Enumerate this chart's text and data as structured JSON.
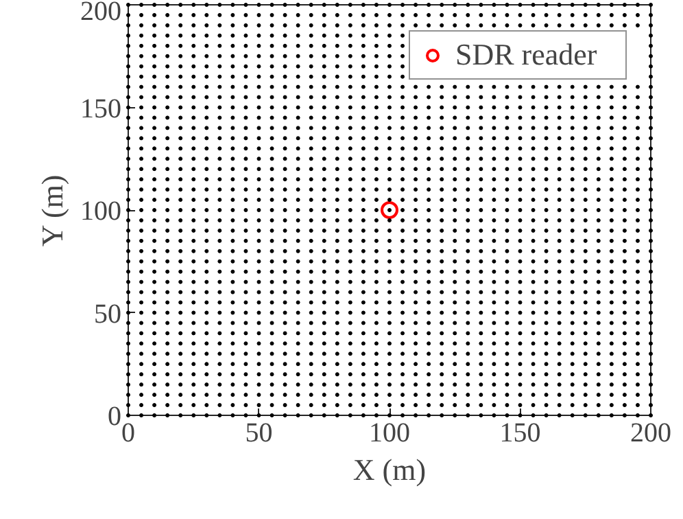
{
  "chart_data": {
    "type": "scatter",
    "xlabel": "X (m)",
    "ylabel": "Y (m)",
    "xlim": [
      0,
      200
    ],
    "ylim": [
      0,
      200
    ],
    "xticks": [
      0,
      50,
      100,
      150,
      200
    ],
    "yticks": [
      0,
      50,
      100,
      150,
      200
    ],
    "grid": false,
    "legend": "top right",
    "marker": "circle",
    "x": [
      0,
      5,
      10,
      15,
      20,
      25,
      30,
      35,
      40,
      45,
      50,
      55,
      60,
      65,
      70,
      75,
      80,
      85,
      90,
      95,
      100,
      105,
      110,
      115,
      120,
      125,
      130,
      135,
      140,
      145,
      150,
      155,
      160,
      165,
      170,
      175,
      180,
      185,
      190,
      195,
      200
    ],
    "series": [
      {
        "color": "#000000",
        "values": [
          0,
          0,
          0,
          0,
          0,
          0,
          0,
          0,
          0,
          0,
          0,
          0,
          0,
          0,
          0,
          0,
          0,
          0,
          0,
          0,
          0,
          0,
          0,
          0,
          0,
          0,
          0,
          0,
          0,
          0,
          0,
          0,
          0,
          0,
          0,
          0,
          0,
          0,
          0,
          0,
          0
        ]
      },
      {
        "color": "#000000",
        "values": [
          5,
          5,
          5,
          5,
          5,
          5,
          5,
          5,
          5,
          5,
          5,
          5,
          5,
          5,
          5,
          5,
          5,
          5,
          5,
          5,
          5,
          5,
          5,
          5,
          5,
          5,
          5,
          5,
          5,
          5,
          5,
          5,
          5,
          5,
          5,
          5,
          5,
          5,
          5,
          5,
          5
        ]
      },
      {
        "color": "#000000",
        "values": [
          10,
          10,
          10,
          10,
          10,
          10,
          10,
          10,
          10,
          10,
          10,
          10,
          10,
          10,
          10,
          10,
          10,
          10,
          10,
          10,
          10,
          10,
          10,
          10,
          10,
          10,
          10,
          10,
          10,
          10,
          10,
          10,
          10,
          10,
          10,
          10,
          10,
          10,
          10,
          10,
          10
        ]
      },
      {
        "color": "#000000",
        "values": [
          15,
          15,
          15,
          15,
          15,
          15,
          15,
          15,
          15,
          15,
          15,
          15,
          15,
          15,
          15,
          15,
          15,
          15,
          15,
          15,
          15,
          15,
          15,
          15,
          15,
          15,
          15,
          15,
          15,
          15,
          15,
          15,
          15,
          15,
          15,
          15,
          15,
          15,
          15,
          15,
          15
        ]
      },
      {
        "color": "#000000",
        "values": [
          20,
          20,
          20,
          20,
          20,
          20,
          20,
          20,
          20,
          20,
          20,
          20,
          20,
          20,
          20,
          20,
          20,
          20,
          20,
          20,
          20,
          20,
          20,
          20,
          20,
          20,
          20,
          20,
          20,
          20,
          20,
          20,
          20,
          20,
          20,
          20,
          20,
          20,
          20,
          20,
          20
        ]
      },
      {
        "color": "#000000",
        "values": [
          25,
          25,
          25,
          25,
          25,
          25,
          25,
          25,
          25,
          25,
          25,
          25,
          25,
          25,
          25,
          25,
          25,
          25,
          25,
          25,
          25,
          25,
          25,
          25,
          25,
          25,
          25,
          25,
          25,
          25,
          25,
          25,
          25,
          25,
          25,
          25,
          25,
          25,
          25,
          25,
          25
        ]
      },
      {
        "color": "#000000",
        "values": [
          30,
          30,
          30,
          30,
          30,
          30,
          30,
          30,
          30,
          30,
          30,
          30,
          30,
          30,
          30,
          30,
          30,
          30,
          30,
          30,
          30,
          30,
          30,
          30,
          30,
          30,
          30,
          30,
          30,
          30,
          30,
          30,
          30,
          30,
          30,
          30,
          30,
          30,
          30,
          30,
          30
        ]
      },
      {
        "color": "#000000",
        "values": [
          35,
          35,
          35,
          35,
          35,
          35,
          35,
          35,
          35,
          35,
          35,
          35,
          35,
          35,
          35,
          35,
          35,
          35,
          35,
          35,
          35,
          35,
          35,
          35,
          35,
          35,
          35,
          35,
          35,
          35,
          35,
          35,
          35,
          35,
          35,
          35,
          35,
          35,
          35,
          35,
          35
        ]
      },
      {
        "color": "#000000",
        "values": [
          40,
          40,
          40,
          40,
          40,
          40,
          40,
          40,
          40,
          40,
          40,
          40,
          40,
          40,
          40,
          40,
          40,
          40,
          40,
          40,
          40,
          40,
          40,
          40,
          40,
          40,
          40,
          40,
          40,
          40,
          40,
          40,
          40,
          40,
          40,
          40,
          40,
          40,
          40,
          40,
          40
        ]
      },
      {
        "color": "#000000",
        "values": [
          45,
          45,
          45,
          45,
          45,
          45,
          45,
          45,
          45,
          45,
          45,
          45,
          45,
          45,
          45,
          45,
          45,
          45,
          45,
          45,
          45,
          45,
          45,
          45,
          45,
          45,
          45,
          45,
          45,
          45,
          45,
          45,
          45,
          45,
          45,
          45,
          45,
          45,
          45,
          45,
          45
        ]
      },
      {
        "color": "#000000",
        "values": [
          50,
          50,
          50,
          50,
          50,
          50,
          50,
          50,
          50,
          50,
          50,
          50,
          50,
          50,
          50,
          50,
          50,
          50,
          50,
          50,
          50,
          50,
          50,
          50,
          50,
          50,
          50,
          50,
          50,
          50,
          50,
          50,
          50,
          50,
          50,
          50,
          50,
          50,
          50,
          50,
          50
        ]
      },
      {
        "color": "#000000",
        "values": [
          55,
          55,
          55,
          55,
          55,
          55,
          55,
          55,
          55,
          55,
          55,
          55,
          55,
          55,
          55,
          55,
          55,
          55,
          55,
          55,
          55,
          55,
          55,
          55,
          55,
          55,
          55,
          55,
          55,
          55,
          55,
          55,
          55,
          55,
          55,
          55,
          55,
          55,
          55,
          55,
          55
        ]
      },
      {
        "color": "#000000",
        "values": [
          60,
          60,
          60,
          60,
          60,
          60,
          60,
          60,
          60,
          60,
          60,
          60,
          60,
          60,
          60,
          60,
          60,
          60,
          60,
          60,
          60,
          60,
          60,
          60,
          60,
          60,
          60,
          60,
          60,
          60,
          60,
          60,
          60,
          60,
          60,
          60,
          60,
          60,
          60,
          60,
          60
        ]
      },
      {
        "color": "#000000",
        "values": [
          65,
          65,
          65,
          65,
          65,
          65,
          65,
          65,
          65,
          65,
          65,
          65,
          65,
          65,
          65,
          65,
          65,
          65,
          65,
          65,
          65,
          65,
          65,
          65,
          65,
          65,
          65,
          65,
          65,
          65,
          65,
          65,
          65,
          65,
          65,
          65,
          65,
          65,
          65,
          65,
          65
        ]
      },
      {
        "color": "#000000",
        "values": [
          70,
          70,
          70,
          70,
          70,
          70,
          70,
          70,
          70,
          70,
          70,
          70,
          70,
          70,
          70,
          70,
          70,
          70,
          70,
          70,
          70,
          70,
          70,
          70,
          70,
          70,
          70,
          70,
          70,
          70,
          70,
          70,
          70,
          70,
          70,
          70,
          70,
          70,
          70,
          70,
          70
        ]
      },
      {
        "color": "#000000",
        "values": [
          75,
          75,
          75,
          75,
          75,
          75,
          75,
          75,
          75,
          75,
          75,
          75,
          75,
          75,
          75,
          75,
          75,
          75,
          75,
          75,
          75,
          75,
          75,
          75,
          75,
          75,
          75,
          75,
          75,
          75,
          75,
          75,
          75,
          75,
          75,
          75,
          75,
          75,
          75,
          75,
          75
        ]
      },
      {
        "color": "#000000",
        "values": [
          80,
          80,
          80,
          80,
          80,
          80,
          80,
          80,
          80,
          80,
          80,
          80,
          80,
          80,
          80,
          80,
          80,
          80,
          80,
          80,
          80,
          80,
          80,
          80,
          80,
          80,
          80,
          80,
          80,
          80,
          80,
          80,
          80,
          80,
          80,
          80,
          80,
          80,
          80,
          80,
          80
        ]
      },
      {
        "color": "#000000",
        "values": [
          85,
          85,
          85,
          85,
          85,
          85,
          85,
          85,
          85,
          85,
          85,
          85,
          85,
          85,
          85,
          85,
          85,
          85,
          85,
          85,
          85,
          85,
          85,
          85,
          85,
          85,
          85,
          85,
          85,
          85,
          85,
          85,
          85,
          85,
          85,
          85,
          85,
          85,
          85,
          85,
          85
        ]
      },
      {
        "color": "#000000",
        "values": [
          90,
          90,
          90,
          90,
          90,
          90,
          90,
          90,
          90,
          90,
          90,
          90,
          90,
          90,
          90,
          90,
          90,
          90,
          90,
          90,
          90,
          90,
          90,
          90,
          90,
          90,
          90,
          90,
          90,
          90,
          90,
          90,
          90,
          90,
          90,
          90,
          90,
          90,
          90,
          90,
          90
        ]
      },
      {
        "color": "#000000",
        "values": [
          95,
          95,
          95,
          95,
          95,
          95,
          95,
          95,
          95,
          95,
          95,
          95,
          95,
          95,
          95,
          95,
          95,
          95,
          95,
          95,
          95,
          95,
          95,
          95,
          95,
          95,
          95,
          95,
          95,
          95,
          95,
          95,
          95,
          95,
          95,
          95,
          95,
          95,
          95,
          95,
          95
        ]
      },
      {
        "color": "#000000",
        "values": [
          100,
          100,
          100,
          100,
          100,
          100,
          100,
          100,
          100,
          100,
          100,
          100,
          100,
          100,
          100,
          100,
          100,
          100,
          100,
          100,
          100,
          100,
          100,
          100,
          100,
          100,
          100,
          100,
          100,
          100,
          100,
          100,
          100,
          100,
          100,
          100,
          100,
          100,
          100,
          100,
          100
        ]
      },
      {
        "color": "#000000",
        "values": [
          105,
          105,
          105,
          105,
          105,
          105,
          105,
          105,
          105,
          105,
          105,
          105,
          105,
          105,
          105,
          105,
          105,
          105,
          105,
          105,
          105,
          105,
          105,
          105,
          105,
          105,
          105,
          105,
          105,
          105,
          105,
          105,
          105,
          105,
          105,
          105,
          105,
          105,
          105,
          105,
          105
        ]
      },
      {
        "color": "#000000",
        "values": [
          110,
          110,
          110,
          110,
          110,
          110,
          110,
          110,
          110,
          110,
          110,
          110,
          110,
          110,
          110,
          110,
          110,
          110,
          110,
          110,
          110,
          110,
          110,
          110,
          110,
          110,
          110,
          110,
          110,
          110,
          110,
          110,
          110,
          110,
          110,
          110,
          110,
          110,
          110,
          110,
          110
        ]
      },
      {
        "color": "#000000",
        "values": [
          115,
          115,
          115,
          115,
          115,
          115,
          115,
          115,
          115,
          115,
          115,
          115,
          115,
          115,
          115,
          115,
          115,
          115,
          115,
          115,
          115,
          115,
          115,
          115,
          115,
          115,
          115,
          115,
          115,
          115,
          115,
          115,
          115,
          115,
          115,
          115,
          115,
          115,
          115,
          115,
          115
        ]
      },
      {
        "color": "#000000",
        "values": [
          120,
          120,
          120,
          120,
          120,
          120,
          120,
          120,
          120,
          120,
          120,
          120,
          120,
          120,
          120,
          120,
          120,
          120,
          120,
          120,
          120,
          120,
          120,
          120,
          120,
          120,
          120,
          120,
          120,
          120,
          120,
          120,
          120,
          120,
          120,
          120,
          120,
          120,
          120,
          120,
          120
        ]
      },
      {
        "color": "#000000",
        "values": [
          125,
          125,
          125,
          125,
          125,
          125,
          125,
          125,
          125,
          125,
          125,
          125,
          125,
          125,
          125,
          125,
          125,
          125,
          125,
          125,
          125,
          125,
          125,
          125,
          125,
          125,
          125,
          125,
          125,
          125,
          125,
          125,
          125,
          125,
          125,
          125,
          125,
          125,
          125,
          125,
          125
        ]
      },
      {
        "color": "#000000",
        "values": [
          130,
          130,
          130,
          130,
          130,
          130,
          130,
          130,
          130,
          130,
          130,
          130,
          130,
          130,
          130,
          130,
          130,
          130,
          130,
          130,
          130,
          130,
          130,
          130,
          130,
          130,
          130,
          130,
          130,
          130,
          130,
          130,
          130,
          130,
          130,
          130,
          130,
          130,
          130,
          130,
          130
        ]
      },
      {
        "color": "#000000",
        "values": [
          135,
          135,
          135,
          135,
          135,
          135,
          135,
          135,
          135,
          135,
          135,
          135,
          135,
          135,
          135,
          135,
          135,
          135,
          135,
          135,
          135,
          135,
          135,
          135,
          135,
          135,
          135,
          135,
          135,
          135,
          135,
          135,
          135,
          135,
          135,
          135,
          135,
          135,
          135,
          135,
          135
        ]
      },
      {
        "color": "#000000",
        "values": [
          140,
          140,
          140,
          140,
          140,
          140,
          140,
          140,
          140,
          140,
          140,
          140,
          140,
          140,
          140,
          140,
          140,
          140,
          140,
          140,
          140,
          140,
          140,
          140,
          140,
          140,
          140,
          140,
          140,
          140,
          140,
          140,
          140,
          140,
          140,
          140,
          140,
          140,
          140,
          140,
          140
        ]
      },
      {
        "color": "#000000",
        "values": [
          145,
          145,
          145,
          145,
          145,
          145,
          145,
          145,
          145,
          145,
          145,
          145,
          145,
          145,
          145,
          145,
          145,
          145,
          145,
          145,
          145,
          145,
          145,
          145,
          145,
          145,
          145,
          145,
          145,
          145,
          145,
          145,
          145,
          145,
          145,
          145,
          145,
          145,
          145,
          145,
          145
        ]
      },
      {
        "color": "#000000",
        "values": [
          150,
          150,
          150,
          150,
          150,
          150,
          150,
          150,
          150,
          150,
          150,
          150,
          150,
          150,
          150,
          150,
          150,
          150,
          150,
          150,
          150,
          150,
          150,
          150,
          150,
          150,
          150,
          150,
          150,
          150,
          150,
          150,
          150,
          150,
          150,
          150,
          150,
          150,
          150,
          150,
          150
        ]
      },
      {
        "color": "#000000",
        "values": [
          155,
          155,
          155,
          155,
          155,
          155,
          155,
          155,
          155,
          155,
          155,
          155,
          155,
          155,
          155,
          155,
          155,
          155,
          155,
          155,
          155,
          155,
          155,
          155,
          155,
          155,
          155,
          155,
          155,
          155,
          155,
          155,
          155,
          155,
          155,
          155,
          155,
          155,
          155,
          155,
          155
        ]
      },
      {
        "color": "#000000",
        "values": [
          160,
          160,
          160,
          160,
          160,
          160,
          160,
          160,
          160,
          160,
          160,
          160,
          160,
          160,
          160,
          160,
          160,
          160,
          160,
          160,
          160,
          160,
          160,
          160,
          160,
          160,
          160,
          160,
          160,
          160,
          160,
          160,
          160,
          160,
          160,
          160,
          160,
          160,
          160,
          160,
          160
        ]
      },
      {
        "color": "#000000",
        "values": [
          165,
          165,
          165,
          165,
          165,
          165,
          165,
          165,
          165,
          165,
          165,
          165,
          165,
          165,
          165,
          165,
          165,
          165,
          165,
          165,
          165,
          165,
          null,
          null,
          null,
          null,
          null,
          null,
          null,
          null,
          null,
          null,
          null,
          null,
          null,
          null,
          null,
          null,
          null,
          null,
          165
        ]
      },
      {
        "color": "#000000",
        "values": [
          170,
          170,
          170,
          170,
          170,
          170,
          170,
          170,
          170,
          170,
          170,
          170,
          170,
          170,
          170,
          170,
          170,
          170,
          170,
          170,
          170,
          170,
          null,
          null,
          null,
          null,
          null,
          null,
          null,
          null,
          null,
          null,
          null,
          null,
          null,
          null,
          null,
          null,
          null,
          null,
          170
        ]
      },
      {
        "color": "#000000",
        "values": [
          175,
          175,
          175,
          175,
          175,
          175,
          175,
          175,
          175,
          175,
          175,
          175,
          175,
          175,
          175,
          175,
          175,
          175,
          175,
          175,
          175,
          175,
          null,
          null,
          null,
          null,
          null,
          null,
          null,
          null,
          null,
          null,
          null,
          null,
          null,
          null,
          null,
          null,
          null,
          null,
          175
        ]
      },
      {
        "color": "#000000",
        "values": [
          180,
          180,
          180,
          180,
          180,
          180,
          180,
          180,
          180,
          180,
          180,
          180,
          180,
          180,
          180,
          180,
          180,
          180,
          180,
          180,
          180,
          180,
          null,
          null,
          null,
          null,
          null,
          null,
          null,
          null,
          null,
          null,
          null,
          null,
          null,
          null,
          null,
          null,
          null,
          null,
          180
        ]
      },
      {
        "color": "#000000",
        "values": [
          185,
          185,
          185,
          185,
          185,
          185,
          185,
          185,
          185,
          185,
          185,
          185,
          185,
          185,
          185,
          185,
          185,
          185,
          185,
          185,
          185,
          185,
          null,
          null,
          null,
          null,
          null,
          null,
          null,
          null,
          null,
          null,
          null,
          null,
          null,
          null,
          null,
          null,
          null,
          null,
          185
        ]
      },
      {
        "color": "#000000",
        "values": [
          190,
          190,
          190,
          190,
          190,
          190,
          190,
          190,
          190,
          190,
          190,
          190,
          190,
          190,
          190,
          190,
          190,
          190,
          190,
          190,
          190,
          190,
          190,
          190,
          190,
          190,
          190,
          190,
          190,
          190,
          190,
          190,
          190,
          190,
          190,
          190,
          190,
          190,
          190,
          190,
          190
        ]
      },
      {
        "color": "#000000",
        "values": [
          195,
          195,
          195,
          195,
          195,
          195,
          195,
          195,
          195,
          195,
          195,
          195,
          195,
          195,
          195,
          195,
          195,
          195,
          195,
          195,
          195,
          195,
          195,
          195,
          195,
          195,
          195,
          195,
          195,
          195,
          195,
          195,
          195,
          195,
          195,
          195,
          195,
          195,
          195,
          195,
          195
        ]
      },
      {
        "color": "#000000",
        "values": [
          200,
          200,
          200,
          200,
          200,
          200,
          200,
          200,
          200,
          200,
          200,
          200,
          200,
          200,
          200,
          200,
          200,
          200,
          200,
          200,
          200,
          200,
          200,
          200,
          200,
          200,
          200,
          200,
          200,
          200,
          200,
          200,
          200,
          200,
          200,
          200,
          200,
          200,
          200,
          200,
          200
        ]
      },
      {
        "name": "SDR reader",
        "color": "#ff0000",
        "x": [
          100
        ],
        "values": [
          100
        ]
      }
    ]
  }
}
